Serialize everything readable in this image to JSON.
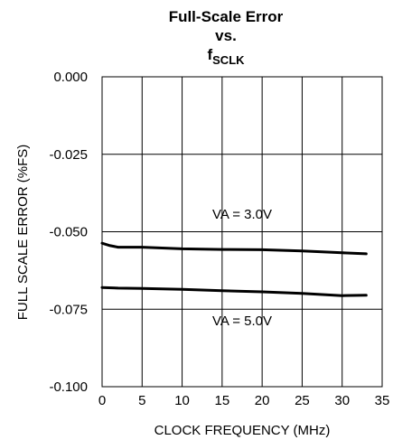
{
  "chart_data": {
    "type": "line",
    "title_line1": "Full-Scale Error",
    "title_line2": "vs.",
    "title_line3_main": "f",
    "title_line3_sub": "SCLK",
    "xlabel": "CLOCK FREQUENCY (MHz)",
    "ylabel": "FULL SCALE ERROR (%FS)",
    "xlim": [
      0,
      35
    ],
    "ylim": [
      -0.1,
      0.0
    ],
    "xticks": [
      "0",
      "5",
      "10",
      "15",
      "20",
      "25",
      "30",
      "35"
    ],
    "xtick_values": [
      0,
      5,
      10,
      15,
      20,
      25,
      30,
      35
    ],
    "yticks": [
      "0.000",
      "-0.025",
      "-0.050",
      "-0.075",
      "-0.100"
    ],
    "ytick_values": [
      0.0,
      -0.025,
      -0.05,
      -0.075,
      -0.1
    ],
    "grid": true,
    "series": [
      {
        "x": [
          0,
          1,
          2,
          5,
          10,
          15,
          20,
          25,
          30,
          33
        ],
        "values": [
          -0.0537,
          -0.0545,
          -0.055,
          -0.055,
          -0.0555,
          -0.0557,
          -0.0558,
          -0.0562,
          -0.0568,
          -0.0571
        ]
      },
      {
        "x": [
          0,
          2,
          5,
          10,
          15,
          20,
          25,
          30,
          33
        ],
        "values": [
          -0.068,
          -0.0682,
          -0.0683,
          -0.0686,
          -0.069,
          -0.0694,
          -0.0699,
          -0.0706,
          -0.0705
        ]
      }
    ],
    "annotations": [
      "VA = 3.0V",
      "VA = 5.0V"
    ]
  }
}
